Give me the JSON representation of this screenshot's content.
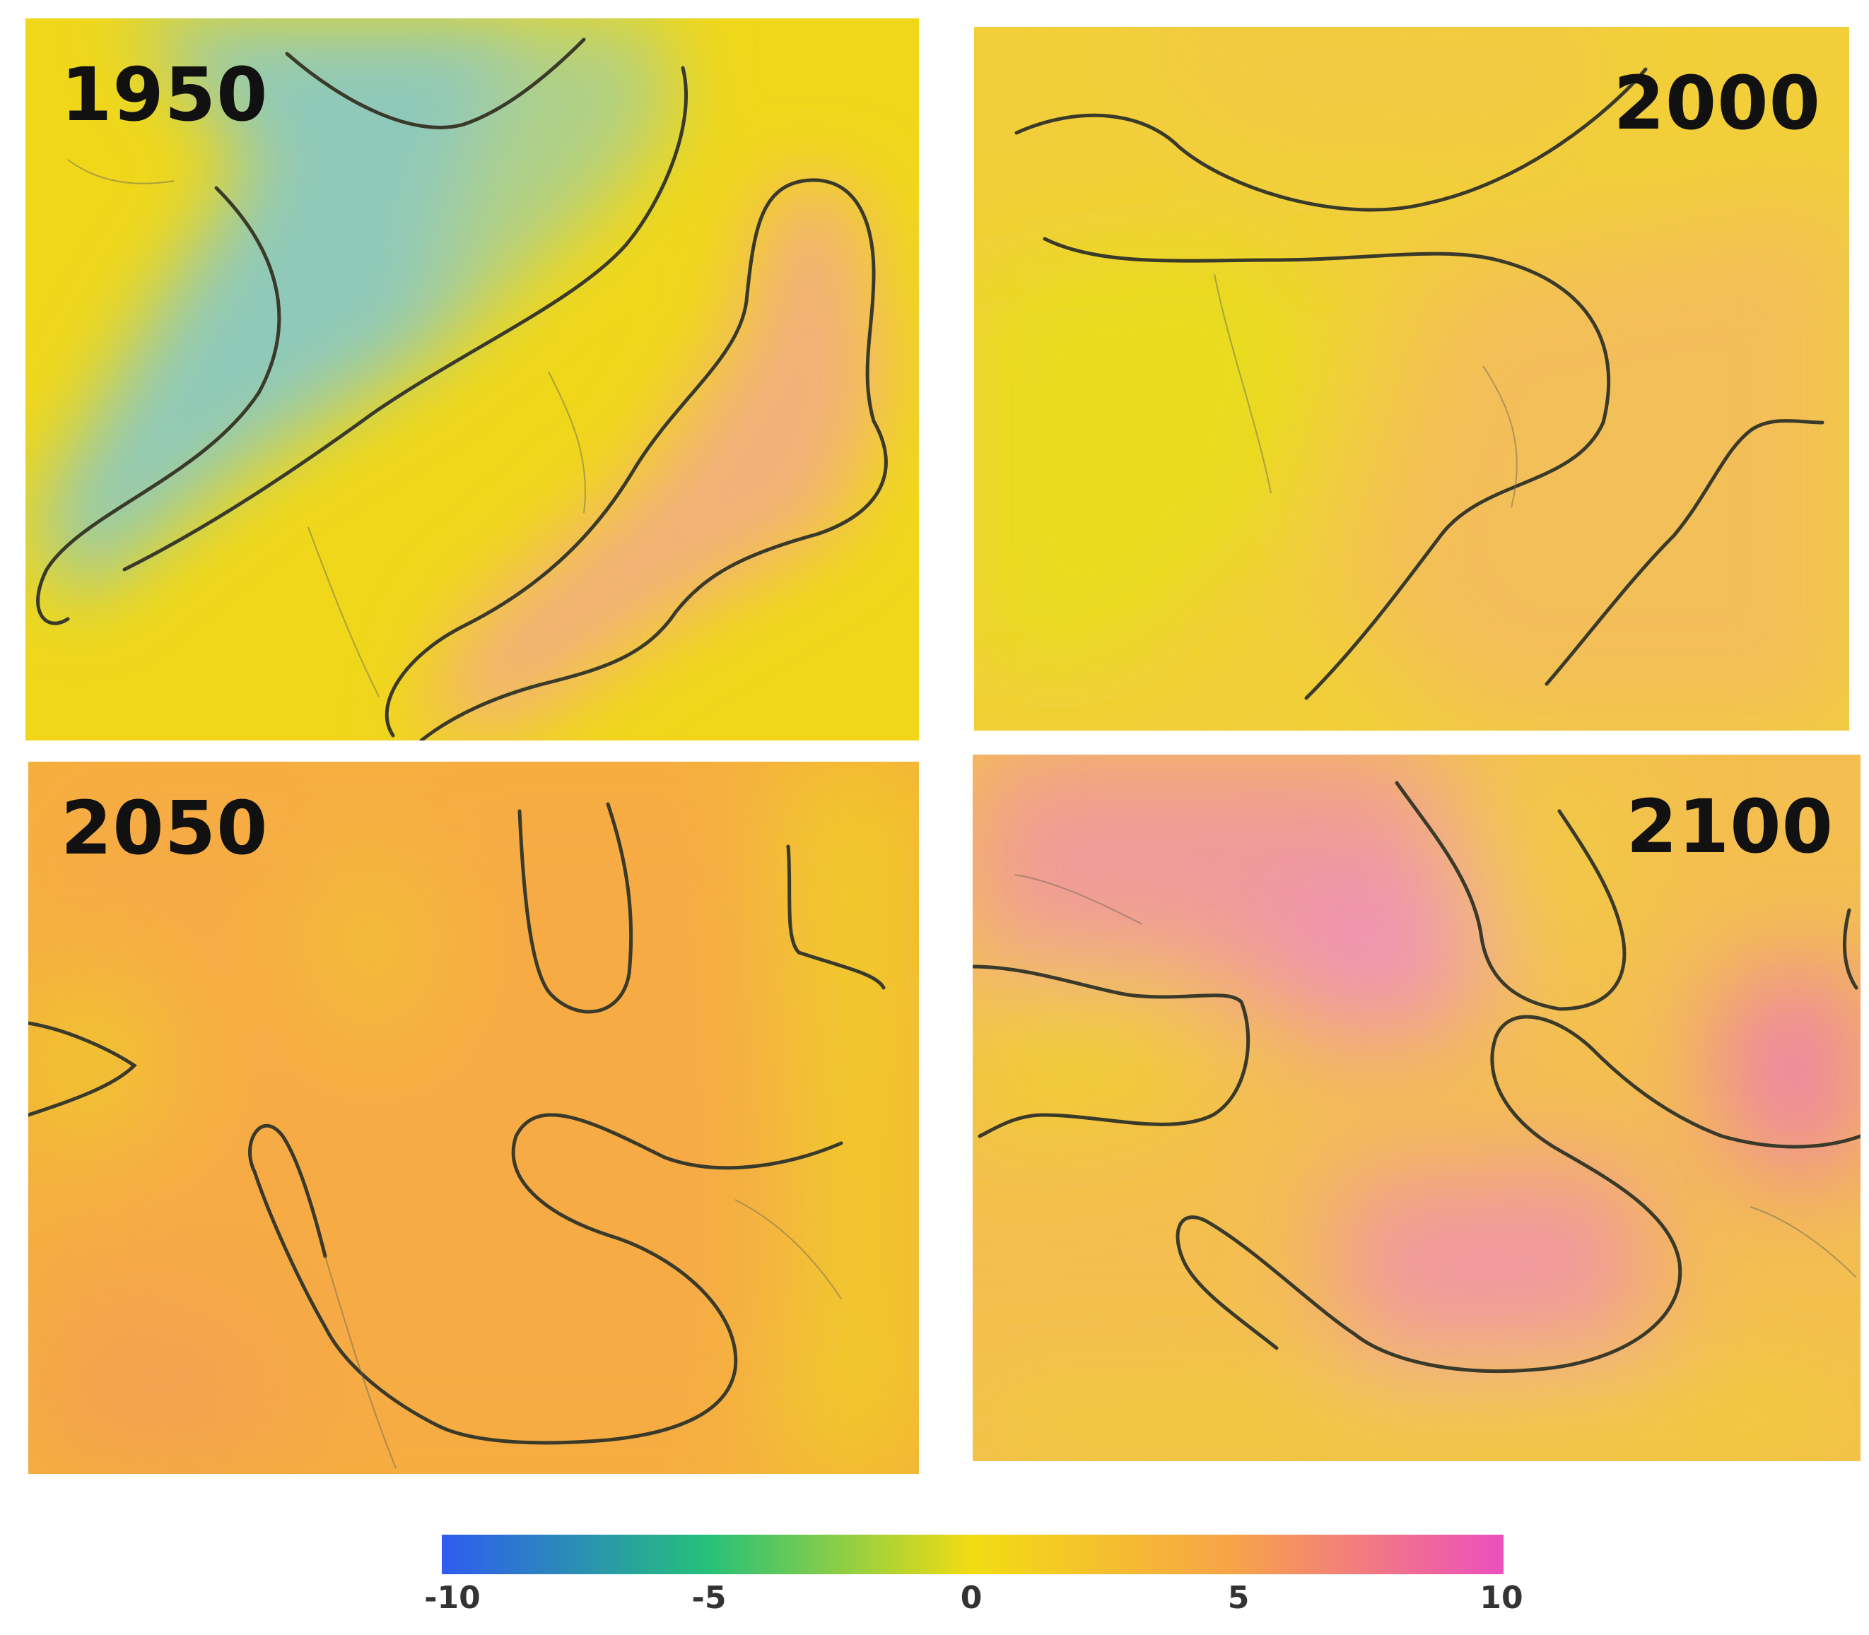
{
  "panels": [
    {
      "id": "p1950",
      "label": "1950",
      "label_position": "top-left"
    },
    {
      "id": "p2000",
      "label": "2000",
      "label_position": "top-right"
    },
    {
      "id": "p2050",
      "label": "2050",
      "label_position": "top-left"
    },
    {
      "id": "p2100",
      "label": "2100",
      "label_position": "top-right"
    }
  ],
  "colorbar": {
    "min": -10,
    "max": 10,
    "tick_labels": [
      "-10",
      "-5",
      "0",
      "5",
      "10"
    ],
    "colors": {
      "-10": "#2f5cf0",
      "-5": "#26c07a",
      "0": "#f2dc12",
      "5": "#f7a24a",
      "10": "#ec4fbd"
    }
  },
  "colors": {
    "background": "#ffffff",
    "field_base": "#f0d71a",
    "contour": "#3a3a2a"
  }
}
